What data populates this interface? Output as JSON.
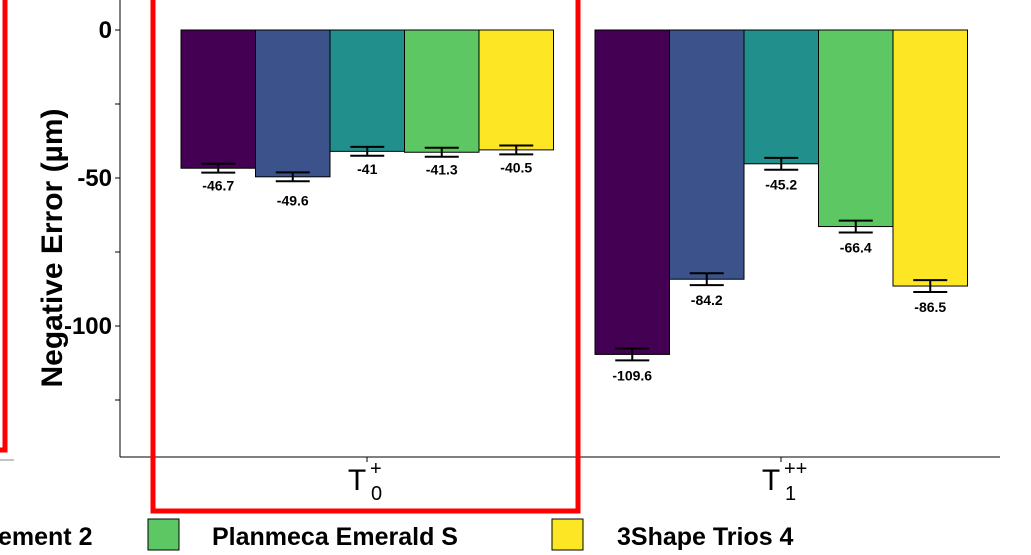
{
  "chart_data": {
    "type": "bar",
    "ylabel": "Negative Error (µm)",
    "ylim": [
      -145,
      5
    ],
    "yticks": [
      0,
      -50,
      -100
    ],
    "ytick_labels": [
      "0",
      "-50",
      "-100"
    ],
    "groups": [
      {
        "base": "T",
        "sub": "0",
        "sup": "+"
      },
      {
        "base": "T",
        "sub": "1",
        "sup": "++"
      }
    ],
    "series": [
      {
        "name": "",
        "color": "#440154",
        "values": [
          -46.7,
          -109.6
        ],
        "labels": [
          "-46.7",
          "-109.6"
        ],
        "err": [
          1.5,
          2.0
        ]
      },
      {
        "name": "",
        "color": "#3B528B",
        "values": [
          -49.6,
          -84.2
        ],
        "labels": [
          "-49.6",
          "-84.2"
        ],
        "err": [
          1.5,
          2.0
        ]
      },
      {
        "name": "",
        "color": "#21908C",
        "values": [
          -41.0,
          -45.2
        ],
        "labels": [
          "-41",
          "-45.2"
        ],
        "err": [
          1.5,
          2.0
        ]
      },
      {
        "name": "Planmeca Emerald S",
        "color": "#5DC863",
        "values": [
          -41.3,
          -66.4
        ],
        "labels": [
          "-41.3",
          "-66.4"
        ],
        "err": [
          1.5,
          2.0
        ]
      },
      {
        "name": "3Shape Trios 4",
        "color": "#FDE725",
        "values": [
          -40.5,
          -86.5
        ],
        "labels": [
          "-40.5",
          "-86.5"
        ],
        "err": [
          1.5,
          2.0
        ]
      }
    ],
    "legend": {
      "placement": "bottom",
      "partial_entry": "ement 2",
      "partial_entry_color": "#21908C",
      "entries": [
        "Planmeca Emerald S",
        "3Shape Trios 4"
      ]
    },
    "annotation": {
      "highlight_group": "T0+",
      "color": "#FF0000"
    }
  }
}
